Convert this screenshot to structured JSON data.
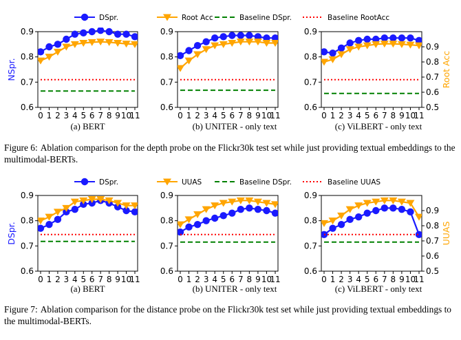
{
  "colors": {
    "dspr": "#1a1aff",
    "accent": "#ffa500",
    "baseline_dspr": "#008000",
    "baseline_root": "#ff0000"
  },
  "captions": [
    {
      "label": "Figure 6:",
      "text": "Ablation comparison for the depth probe on the Flickr30k test set while just providing textual embeddings to the multimodal-BERTs."
    },
    {
      "label": "Figure 7:",
      "text": "Ablation comparison for the distance probe on the Flickr30k test set while just providing textual embeddings to the multimodal-BERTs."
    }
  ],
  "chart_data": [
    {
      "type": "line",
      "title": "(a) BERT",
      "ylabel": "NSpr.",
      "ylim": [
        0.6,
        0.9
      ],
      "y2lim": [
        0.5,
        1.0
      ],
      "x": [
        0,
        1,
        2,
        3,
        4,
        5,
        6,
        7,
        8,
        9,
        10,
        11
      ],
      "legend": [
        "DSpr.",
        "Root Acc",
        "Baseline DSpr.",
        "Baseline RootAcc"
      ],
      "series": [
        {
          "name": "DSpr.",
          "axis": "left",
          "values": [
            0.82,
            0.84,
            0.85,
            0.87,
            0.89,
            0.895,
            0.9,
            0.905,
            0.9,
            0.89,
            0.89,
            0.88
          ]
        },
        {
          "name": "Root Acc",
          "axis": "left",
          "values": [
            0.785,
            0.8,
            0.82,
            0.84,
            0.85,
            0.855,
            0.858,
            0.86,
            0.858,
            0.855,
            0.852,
            0.85
          ]
        },
        {
          "name": "Baseline DSpr.",
          "axis": "left",
          "values": [
            0.665,
            0.665,
            0.665,
            0.665,
            0.665,
            0.665,
            0.665,
            0.665,
            0.665,
            0.665,
            0.665,
            0.665
          ]
        },
        {
          "name": "Baseline RootAcc",
          "axis": "left",
          "values": [
            0.71,
            0.71,
            0.71,
            0.71,
            0.71,
            0.71,
            0.71,
            0.71,
            0.71,
            0.71,
            0.71,
            0.71
          ]
        }
      ]
    },
    {
      "type": "line",
      "title": "(b) UNITER - only text",
      "ylim": [
        0.6,
        0.9
      ],
      "y2lim": [
        0.5,
        1.0
      ],
      "x": [
        0,
        1,
        2,
        3,
        4,
        5,
        6,
        7,
        8,
        9,
        10,
        11
      ],
      "series": [
        {
          "name": "DSpr.",
          "axis": "left",
          "values": [
            0.805,
            0.825,
            0.845,
            0.86,
            0.875,
            0.88,
            0.885,
            0.885,
            0.885,
            0.88,
            0.875,
            0.875
          ]
        },
        {
          "name": "Root Acc",
          "axis": "left",
          "values": [
            0.755,
            0.785,
            0.81,
            0.83,
            0.845,
            0.85,
            0.855,
            0.86,
            0.86,
            0.86,
            0.855,
            0.855
          ]
        },
        {
          "name": "Baseline DSpr.",
          "axis": "left",
          "values": [
            0.668,
            0.668,
            0.668,
            0.668,
            0.668,
            0.668,
            0.668,
            0.668,
            0.668,
            0.668,
            0.668,
            0.668
          ]
        },
        {
          "name": "Baseline RootAcc",
          "axis": "left",
          "values": [
            0.71,
            0.71,
            0.71,
            0.71,
            0.71,
            0.71,
            0.71,
            0.71,
            0.71,
            0.71,
            0.71,
            0.71
          ]
        }
      ]
    },
    {
      "type": "line",
      "title": "(c) ViLBERT - only text",
      "y2label": "Root Acc",
      "ylim": [
        0.6,
        0.9
      ],
      "y2lim": [
        0.5,
        1.0
      ],
      "y2ticks": [
        0.5,
        0.6,
        0.7,
        0.8,
        0.9
      ],
      "x": [
        0,
        1,
        2,
        3,
        4,
        5,
        6,
        7,
        8,
        9,
        10,
        11
      ],
      "series": [
        {
          "name": "DSpr.",
          "axis": "left",
          "values": [
            0.82,
            0.815,
            0.835,
            0.855,
            0.865,
            0.87,
            0.87,
            0.875,
            0.875,
            0.875,
            0.875,
            0.865
          ]
        },
        {
          "name": "Root Acc",
          "axis": "left",
          "values": [
            0.78,
            0.79,
            0.81,
            0.83,
            0.84,
            0.845,
            0.85,
            0.852,
            0.852,
            0.85,
            0.848,
            0.845
          ]
        },
        {
          "name": "Baseline DSpr.",
          "axis": "left",
          "values": [
            0.655,
            0.655,
            0.655,
            0.655,
            0.655,
            0.655,
            0.655,
            0.655,
            0.655,
            0.655,
            0.655,
            0.655
          ]
        },
        {
          "name": "Baseline RootAcc",
          "axis": "left",
          "values": [
            0.71,
            0.71,
            0.71,
            0.71,
            0.71,
            0.71,
            0.71,
            0.71,
            0.71,
            0.71,
            0.71,
            0.71
          ]
        }
      ]
    },
    {
      "type": "line",
      "title": "(a) BERT",
      "ylabel": "DSpr.",
      "ylim": [
        0.6,
        0.9
      ],
      "y2lim": [
        0.5,
        1.0
      ],
      "x": [
        0,
        1,
        2,
        3,
        4,
        5,
        6,
        7,
        8,
        9,
        10,
        11
      ],
      "legend": [
        "DSpr.",
        "UUAS",
        "Baseline DSpr.",
        "Baseline UUAS"
      ],
      "series": [
        {
          "name": "DSpr.",
          "axis": "left",
          "values": [
            0.77,
            0.785,
            0.805,
            0.835,
            0.845,
            0.865,
            0.87,
            0.88,
            0.87,
            0.855,
            0.84,
            0.835
          ]
        },
        {
          "name": "UUAS",
          "axis": "left",
          "values": [
            0.8,
            0.815,
            0.835,
            0.85,
            0.875,
            0.88,
            0.885,
            0.885,
            0.88,
            0.87,
            0.86,
            0.86
          ]
        },
        {
          "name": "Baseline DSpr.",
          "axis": "left",
          "values": [
            0.718,
            0.718,
            0.718,
            0.718,
            0.718,
            0.718,
            0.718,
            0.718,
            0.718,
            0.718,
            0.718,
            0.718
          ]
        },
        {
          "name": "Baseline UUAS",
          "axis": "left",
          "values": [
            0.745,
            0.745,
            0.745,
            0.745,
            0.745,
            0.745,
            0.745,
            0.745,
            0.745,
            0.745,
            0.745,
            0.745
          ]
        }
      ]
    },
    {
      "type": "line",
      "title": "(b) UNITER - only text",
      "ylim": [
        0.6,
        0.9
      ],
      "y2lim": [
        0.5,
        1.0
      ],
      "x": [
        0,
        1,
        2,
        3,
        4,
        5,
        6,
        7,
        8,
        9,
        10,
        11
      ],
      "series": [
        {
          "name": "DSpr.",
          "axis": "left",
          "values": [
            0.755,
            0.775,
            0.785,
            0.8,
            0.81,
            0.82,
            0.83,
            0.845,
            0.85,
            0.845,
            0.84,
            0.83
          ]
        },
        {
          "name": "UUAS",
          "axis": "left",
          "values": [
            0.785,
            0.805,
            0.825,
            0.845,
            0.86,
            0.87,
            0.875,
            0.88,
            0.88,
            0.875,
            0.87,
            0.865
          ]
        },
        {
          "name": "Baseline DSpr.",
          "axis": "left",
          "values": [
            0.715,
            0.715,
            0.715,
            0.715,
            0.715,
            0.715,
            0.715,
            0.715,
            0.715,
            0.715,
            0.715,
            0.715
          ]
        },
        {
          "name": "Baseline UUAS",
          "axis": "left",
          "values": [
            0.745,
            0.745,
            0.745,
            0.745,
            0.745,
            0.745,
            0.745,
            0.745,
            0.745,
            0.745,
            0.745,
            0.745
          ]
        }
      ]
    },
    {
      "type": "line",
      "title": "(c) ViLBERT - only text",
      "y2label": "UUAS",
      "ylim": [
        0.6,
        0.9
      ],
      "y2lim": [
        0.5,
        1.0
      ],
      "y2ticks": [
        0.5,
        0.6,
        0.7,
        0.8,
        0.9
      ],
      "x": [
        0,
        1,
        2,
        3,
        4,
        5,
        6,
        7,
        8,
        9,
        10,
        11
      ],
      "series": [
        {
          "name": "DSpr.",
          "axis": "left",
          "values": [
            0.745,
            0.77,
            0.785,
            0.805,
            0.815,
            0.83,
            0.84,
            0.85,
            0.85,
            0.845,
            0.835,
            0.745
          ]
        },
        {
          "name": "UUAS",
          "axis": "left",
          "values": [
            0.79,
            0.8,
            0.82,
            0.845,
            0.86,
            0.87,
            0.875,
            0.88,
            0.88,
            0.875,
            0.87,
            0.815
          ]
        },
        {
          "name": "Baseline DSpr.",
          "axis": "left",
          "values": [
            0.715,
            0.715,
            0.715,
            0.715,
            0.715,
            0.715,
            0.715,
            0.715,
            0.715,
            0.715,
            0.715,
            0.715
          ]
        },
        {
          "name": "Baseline UUAS",
          "axis": "left",
          "values": [
            0.745,
            0.745,
            0.745,
            0.745,
            0.745,
            0.745,
            0.745,
            0.745,
            0.745,
            0.745,
            0.745,
            0.745
          ]
        }
      ]
    }
  ]
}
